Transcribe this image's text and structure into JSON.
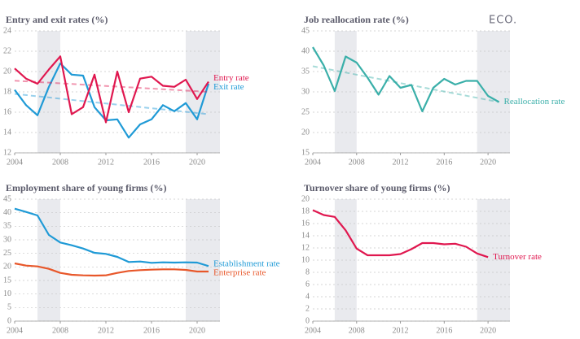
{
  "logo": "ECO.",
  "chart_data": [
    {
      "type": "line",
      "title": "Entry and exit rates (%)",
      "x": [
        2004,
        2005,
        2006,
        2007,
        2008,
        2009,
        2010,
        2011,
        2012,
        2013,
        2014,
        2015,
        2016,
        2017,
        2018,
        2019,
        2020,
        2021
      ],
      "xlim": [
        2004,
        2022
      ],
      "xticks": [
        2004,
        2008,
        2012,
        2016,
        2020
      ],
      "ylim": [
        12,
        24
      ],
      "yticks": [
        12,
        14,
        16,
        18,
        20,
        22,
        24
      ],
      "grid": true,
      "shaded": [
        [
          2006,
          2008
        ],
        [
          2019,
          2022
        ]
      ],
      "series": [
        {
          "name": "Exit rate",
          "color": "#1f9ad6",
          "values": [
            18.2,
            16.7,
            15.7,
            18.5,
            20.8,
            19.7,
            19.6,
            16.5,
            15.2,
            15.3,
            13.5,
            14.8,
            15.3,
            16.7,
            16.1,
            16.9,
            15.3,
            18.8
          ],
          "trend": [
            17.8,
            15.8
          ]
        },
        {
          "name": "Entry rate",
          "color": "#e0174f",
          "values": [
            20.3,
            19.3,
            18.8,
            20.2,
            21.5,
            15.8,
            16.5,
            19.7,
            15.0,
            20.0,
            16.0,
            19.3,
            19.5,
            18.6,
            18.5,
            19.2,
            17.3,
            19.0
          ],
          "trend": [
            19.1,
            18.0
          ]
        }
      ]
    },
    {
      "type": "line",
      "title": "Job reallocation rate (%)",
      "x": [
        2004,
        2005,
        2006,
        2007,
        2008,
        2009,
        2010,
        2011,
        2012,
        2013,
        2014,
        2015,
        2016,
        2017,
        2018,
        2019,
        2020,
        2021
      ],
      "xlim": [
        2004,
        2022
      ],
      "xticks": [
        2004,
        2008,
        2012,
        2016,
        2020
      ],
      "ylim": [
        15,
        45
      ],
      "yticks": [
        15,
        20,
        25,
        30,
        35,
        40,
        45
      ],
      "grid": true,
      "shaded": [
        [
          2006,
          2008
        ],
        [
          2019,
          2022
        ]
      ],
      "series": [
        {
          "name": "Reallocation rate",
          "color": "#3aafa9",
          "values": [
            41.0,
            36.5,
            30.2,
            38.7,
            37.2,
            33.5,
            29.3,
            33.9,
            31.0,
            31.7,
            25.2,
            31.0,
            33.2,
            31.8,
            32.7,
            32.7,
            29.0,
            27.5
          ],
          "trend": [
            36.3,
            27.5
          ]
        }
      ]
    },
    {
      "type": "line",
      "title": "Employment share of young firms (%)",
      "x": [
        2004,
        2005,
        2006,
        2007,
        2008,
        2009,
        2010,
        2011,
        2012,
        2013,
        2014,
        2015,
        2016,
        2017,
        2018,
        2019,
        2020,
        2021
      ],
      "xlim": [
        2004,
        2022
      ],
      "xticks": [
        2004,
        2008,
        2012,
        2016,
        2020
      ],
      "ylim": [
        0,
        45
      ],
      "yticks": [
        0,
        5,
        10,
        15,
        20,
        25,
        30,
        35,
        40,
        45
      ],
      "grid": true,
      "shaded": [
        [
          2006,
          2008
        ],
        [
          2019,
          2022
        ]
      ],
      "series": [
        {
          "name": "Establishment rate",
          "color": "#1f9ad6",
          "values": [
            41.5,
            40.3,
            39.0,
            31.8,
            29.0,
            28.0,
            26.8,
            25.2,
            24.8,
            23.7,
            21.8,
            22.0,
            21.5,
            21.7,
            21.6,
            21.7,
            21.6,
            20.3
          ]
        },
        {
          "name": "Enterprise rate",
          "color": "#e8572a",
          "values": [
            21.3,
            20.5,
            20.2,
            19.3,
            17.8,
            17.1,
            16.9,
            16.8,
            16.9,
            17.8,
            18.5,
            18.8,
            19.0,
            19.1,
            19.1,
            18.9,
            18.3,
            18.3
          ]
        }
      ]
    },
    {
      "type": "line",
      "title": "Turnover share of young firms (%)",
      "x": [
        2004,
        2005,
        2006,
        2007,
        2008,
        2009,
        2010,
        2011,
        2012,
        2013,
        2014,
        2015,
        2016,
        2017,
        2018,
        2019,
        2020
      ],
      "xlim": [
        2004,
        2022
      ],
      "xticks": [
        2004,
        2008,
        2012,
        2016,
        2020
      ],
      "ylim": [
        0,
        20
      ],
      "yticks": [
        0,
        2,
        4,
        6,
        8,
        10,
        12,
        14,
        16,
        18,
        20
      ],
      "grid": true,
      "shaded": [
        [
          2006,
          2008
        ],
        [
          2019,
          2022
        ]
      ],
      "series": [
        {
          "name": "Turnover rate",
          "color": "#e0174f",
          "values": [
            18.2,
            17.4,
            17.1,
            14.9,
            11.9,
            10.8,
            10.8,
            10.8,
            11.0,
            11.8,
            12.8,
            12.8,
            12.6,
            12.7,
            12.2,
            11.1,
            10.5
          ]
        }
      ]
    }
  ]
}
